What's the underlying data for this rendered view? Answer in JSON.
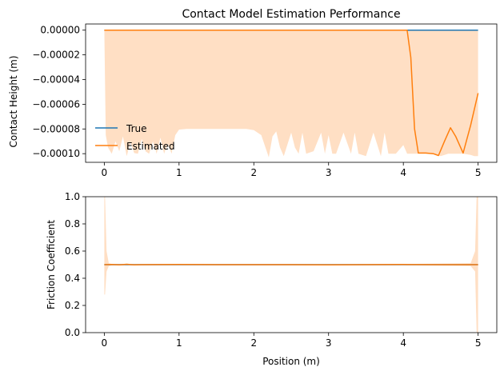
{
  "colors": {
    "true_line": "#1f77b4",
    "estimated_line": "#ff7f0e",
    "band_fill": "#ffdfc4"
  },
  "chart_data": [
    {
      "type": "line",
      "title": "Contact Model Estimation Performance",
      "xlabel": "",
      "ylabel": "Contact Height (m)",
      "xlim": [
        -0.25,
        5.25
      ],
      "ylim": [
        -0.000107,
        5e-06
      ],
      "xticks": [
        0,
        1,
        2,
        3,
        4,
        5
      ],
      "xtick_labels": [
        "0",
        "1",
        "2",
        "3",
        "4",
        "5"
      ],
      "yticks": [
        0.0,
        -2e-05,
        -4e-05,
        -6e-05,
        -8e-05,
        -0.0001
      ],
      "ytick_labels": [
        "0.00000",
        "−0.00002",
        "−0.00004",
        "−0.00006",
        "−0.00008",
        "−0.00010"
      ],
      "legend": "lower left",
      "series": [
        {
          "name": "True",
          "color": "#1f77b4",
          "x": [
            0,
            5
          ],
          "y": [
            0.0,
            0.0
          ]
        },
        {
          "name": "Estimated",
          "color": "#ff7f0e",
          "x": [
            0,
            4.05,
            4.1,
            4.15,
            4.2,
            4.3,
            4.4,
            4.47,
            4.55,
            4.63,
            4.7,
            4.8,
            4.9,
            5.0
          ],
          "y": [
            0.0,
            0.0,
            -2.2e-05,
            -8e-05,
            -9.95e-05,
            -9.95e-05,
            -0.0001,
            -0.0001015,
            -9e-05,
            -7.9e-05,
            -8.6e-05,
            -9.95e-05,
            -7.7e-05,
            -5.1e-05
          ]
        }
      ],
      "band": {
        "upper_x": [
          0,
          5
        ],
        "upper_y": [
          0.0,
          0.0
        ],
        "lower_x": [
          0,
          0.02,
          0.05,
          0.1,
          0.15,
          0.2,
          0.25,
          0.3,
          0.35,
          0.4,
          0.45,
          0.5,
          0.55,
          0.6,
          0.65,
          0.7,
          0.75,
          0.8,
          0.85,
          0.9,
          0.95,
          1.0,
          1.1,
          1.2,
          1.3,
          1.4,
          1.5,
          1.6,
          1.7,
          1.8,
          1.9,
          2.0,
          2.1,
          2.2,
          2.25,
          2.3,
          2.35,
          2.4,
          2.5,
          2.55,
          2.6,
          2.65,
          2.7,
          2.8,
          2.9,
          2.95,
          3.0,
          3.05,
          3.1,
          3.2,
          3.3,
          3.35,
          3.4,
          3.5,
          3.6,
          3.7,
          3.75,
          3.8,
          3.9,
          4.0,
          4.05,
          4.1,
          4.2,
          4.3,
          4.4,
          4.5,
          4.6,
          4.7,
          4.8,
          4.9,
          4.95,
          5.0
        ],
        "lower_y": [
          -0.0,
          -8.5e-05,
          -9.5e-05,
          -0.0001,
          -9e-05,
          -9.8e-05,
          -8.6e-05,
          -0.000102,
          -9.05e-05,
          -9.95e-05,
          -0.0001,
          -8.8e-05,
          -9.8e-05,
          -0.0001,
          -9e-05,
          -0.0001,
          -8.7e-05,
          -0.0001,
          -9.2e-05,
          -0.0001,
          -8.5e-05,
          -8.05e-05,
          -8e-05,
          -8e-05,
          -8e-05,
          -8e-05,
          -8e-05,
          -8e-05,
          -8e-05,
          -8e-05,
          -8e-05,
          -8.1e-05,
          -8.5e-05,
          -0.000103,
          -8.6e-05,
          -8.2e-05,
          -9.5e-05,
          -0.000102,
          -8.3e-05,
          -9.5e-05,
          -0.0001,
          -8.3e-05,
          -0.0001,
          -9.8e-05,
          -8.3e-05,
          -0.0001,
          -8.5e-05,
          -0.0001,
          -0.0001,
          -8.3e-05,
          -0.0001,
          -8.3e-05,
          -0.0001,
          -0.000102,
          -8.3e-05,
          -0.000102,
          -8.3e-05,
          -0.0001,
          -0.0001,
          -9.3e-05,
          -0.0001,
          -0.0001,
          -0.0001,
          -0.0001,
          -0.0001,
          -0.000102,
          -0.0001,
          -0.0001,
          -0.0001,
          -0.000101,
          -0.000102,
          -0.000102
        ]
      }
    },
    {
      "type": "line",
      "title": "",
      "xlabel": "Position (m)",
      "ylabel": "Friction Coefficient",
      "xlim": [
        -0.25,
        5.25
      ],
      "ylim": [
        0.0,
        1.0
      ],
      "xticks": [
        0,
        1,
        2,
        3,
        4,
        5
      ],
      "xtick_labels": [
        "0",
        "1",
        "2",
        "3",
        "4",
        "5"
      ],
      "yticks": [
        0.0,
        0.2,
        0.4,
        0.6,
        0.8,
        1.0
      ],
      "ytick_labels": [
        "0.0",
        "0.2",
        "0.4",
        "0.6",
        "0.8",
        "1.0"
      ],
      "series": [
        {
          "name": "True",
          "color": "#1f77b4",
          "x": [
            0,
            5
          ],
          "y": [
            0.5,
            0.5
          ]
        },
        {
          "name": "Estimated",
          "color": "#ff7f0e",
          "x": [
            0,
            0.1,
            0.2,
            0.3,
            0.4,
            0.5,
            1.0,
            1.5,
            2.0,
            2.5,
            3.0,
            3.5,
            4.0,
            4.5,
            5.0
          ],
          "y": [
            0.5,
            0.502,
            0.498,
            0.503,
            0.499,
            0.5,
            0.501,
            0.5,
            0.5,
            0.5,
            0.499,
            0.5,
            0.501,
            0.5,
            0.5
          ]
        }
      ],
      "band": {
        "upper_x": [
          0,
          0.01,
          0.03,
          0.06,
          0.1,
          0.5,
          1.0,
          2.0,
          3.0,
          4.0,
          4.9,
          4.96,
          4.98,
          5.0
        ],
        "upper_y": [
          1.0,
          1.0,
          0.6,
          0.51,
          0.505,
          0.505,
          0.505,
          0.505,
          0.505,
          0.505,
          0.51,
          0.6,
          1.0,
          1.0
        ],
        "lower_x": [
          0,
          0.01,
          0.03,
          0.06,
          0.1,
          0.5,
          1.0,
          2.0,
          3.0,
          4.0,
          4.9,
          4.96,
          4.98,
          5.0
        ],
        "lower_y": [
          0.28,
          0.28,
          0.45,
          0.49,
          0.495,
          0.495,
          0.495,
          0.495,
          0.495,
          0.495,
          0.49,
          0.45,
          0.0,
          0.0
        ]
      }
    }
  ]
}
